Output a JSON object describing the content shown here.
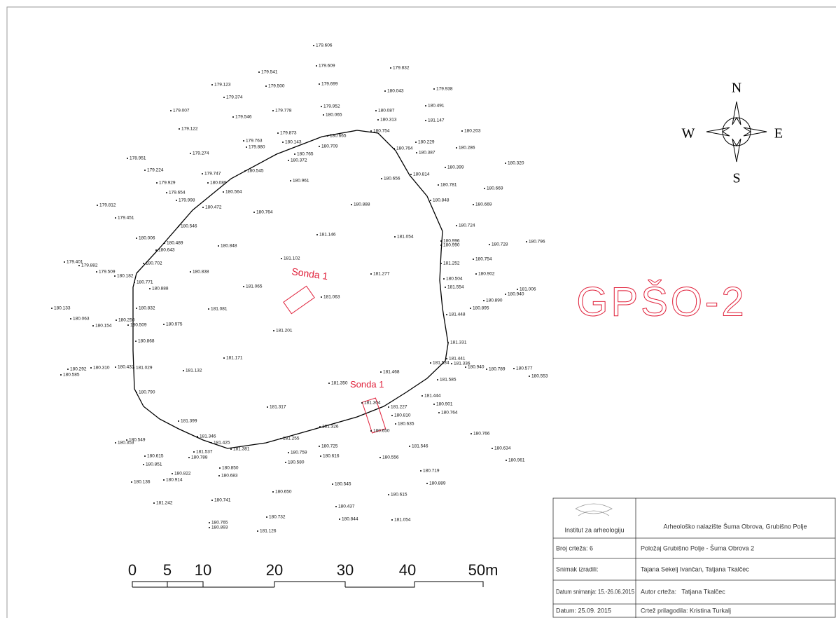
{
  "map": {
    "title": "GPŠO-2",
    "compass": {
      "n": "N",
      "e": "E",
      "s": "S",
      "w": "W"
    },
    "sondas": [
      "Sonda 1",
      "Sonda 1"
    ],
    "scale": [
      "0",
      "5",
      "10",
      "20",
      "30",
      "40",
      "50m"
    ],
    "points": [
      "179.606",
      "179.609",
      "179.541",
      "179.832",
      "179.123",
      "179.500",
      "179.699",
      "180.043",
      "179.938",
      "179.374",
      "179.007",
      "179.546",
      "179.778",
      "179.952",
      "180.065",
      "180.087",
      "180.491",
      "180.313",
      "181.147",
      "179.122",
      "179.873",
      "180.665",
      "180.754",
      "180.203",
      "179.763",
      "179.880",
      "180.143",
      "180.709",
      "180.229",
      "180.286",
      "178.951",
      "179.274",
      "180.372",
      "180.765",
      "180.764",
      "180.387",
      "179.224",
      "179.747",
      "180.545",
      "180.399",
      "180.320",
      "180.656",
      "180.814",
      "179.929",
      "180.089",
      "180.961",
      "180.781",
      "180.669",
      "179.654",
      "180.564",
      "179.998",
      "180.848",
      "180.669",
      "179.812",
      "180.472",
      "180.764",
      "180.888",
      "179.451",
      "180.724",
      "180.546",
      "181.146",
      "181.054",
      "180.006",
      "180.489",
      "180.643",
      "180.848",
      "180.996",
      "180.990",
      "180.728",
      "180.796",
      "181.102",
      "180.754",
      "179.401",
      "179.882",
      "180.702",
      "181.252",
      "179.509",
      "180.182",
      "180.838",
      "181.277",
      "180.902",
      "180.771",
      "180.504",
      "180.888",
      "181.065",
      "181.554",
      "181.006",
      "180.940",
      "180.890",
      "181.063",
      "180.133",
      "180.832",
      "181.081",
      "180.895",
      "181.448",
      "180.063",
      "180.250",
      "180.154",
      "180.509",
      "180.975",
      "181.201",
      "180.868",
      "181.331",
      "181.171",
      "181.441",
      "180.292",
      "180.310",
      "180.432",
      "181.029",
      "181.132",
      "180.585",
      "181.534",
      "181.336",
      "180.940",
      "180.789",
      "180.577",
      "180.553",
      "181.468",
      "181.585",
      "181.350",
      "180.790",
      "181.444",
      "181.304",
      "180.901",
      "181.227",
      "181.317",
      "180.764",
      "180.810",
      "180.635",
      "181.326",
      "180.650",
      "181.399",
      "180.766",
      "181.346",
      "181.425",
      "181.255",
      "180.725",
      "181.546",
      "180.634",
      "180.353",
      "180.549",
      "181.381",
      "181.537",
      "180.759",
      "180.616",
      "180.556",
      "180.961",
      "180.615",
      "180.788",
      "180.580",
      "180.851",
      "180.850",
      "180.719",
      "180.822",
      "180.683",
      "180.136",
      "180.914",
      "180.889",
      "180.545",
      "180.650",
      "180.615",
      "181.242",
      "180.741",
      "180.437",
      "180.732",
      "180.844",
      "181.054",
      "180.765",
      "180.893",
      "181.126"
    ],
    "title_block": {
      "logo": "Institut za arheologiju",
      "site": "Arheološko nalazište Šuma Obrova, Grubišno Polje",
      "rows": [
        [
          "Broj crteža: 6",
          "Položaj Grubišno Polje - Šuma Obrova 2"
        ],
        [
          "Snimak izradili:",
          "Tajana Sekelj Ivančan, Tatjana Tkalčec"
        ],
        [
          "Datum snimanja: 15.-26.06.2015",
          "Autor crteža:   Tatjana Tkalčec"
        ],
        [
          "Datum: 25.09. 2015",
          "Crtež prilagodila: Kristina Turkalj"
        ]
      ]
    }
  }
}
